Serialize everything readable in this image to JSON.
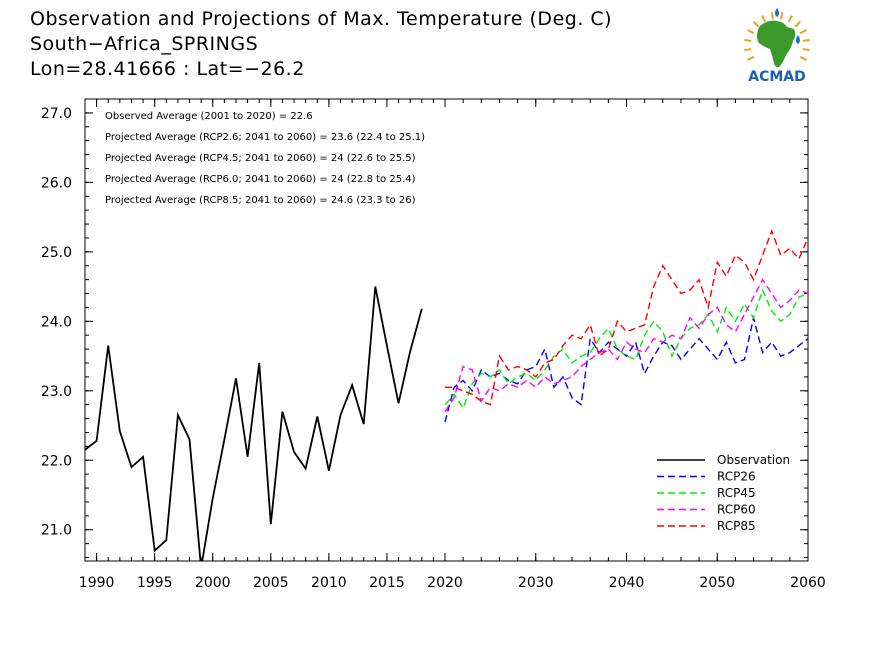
{
  "header": {
    "title": "Observation and Projections of Max. Temperature (Deg. C)",
    "location": "South−Africa_SPRINGS",
    "coords": "Lon=28.41666 : Lat=−26.2"
  },
  "logo": {
    "text": "ACMAD",
    "colors": {
      "africa": "#3a9a2a",
      "rays": "#f0a020",
      "drops": "#1a6fc8",
      "text": "#1a5fb0"
    }
  },
  "annotations": [
    "Observed Average (2001 to 2020) = 22.6",
    "Projected Average (RCP2.6; 2041 to 2060) = 23.6 (22.4 to 25.1)",
    "Projected Average (RCP4.5; 2041 to 2060) = 24 (22.6 to 25.5)",
    "Projected Average (RCP6.0; 2041 to 2060) = 24 (22.8 to 25.4)",
    "Projected Average (RCP8.5; 2041 to 2060) = 24.6 (23.3 to 26)"
  ],
  "chart_data": {
    "type": "line",
    "x_segments": [
      {
        "range": [
          1989,
          2020
        ],
        "ticks": [
          1990,
          1995,
          2000,
          2005,
          2010,
          2015,
          2020
        ]
      },
      {
        "range": [
          2020,
          2060
        ],
        "ticks": [
          2030,
          2040,
          2050,
          2060
        ]
      }
    ],
    "ylim": [
      20.55,
      27.2
    ],
    "yticks": [
      "21.0",
      "22.0",
      "23.0",
      "24.0",
      "25.0",
      "26.0",
      "27.0"
    ],
    "legend": {
      "position": "bottom-right",
      "entries": [
        "Observation",
        "RCP26",
        "RCP45",
        "RCP60",
        "RCP85"
      ]
    },
    "series": [
      {
        "name": "Observation",
        "color": "#000000",
        "dashed": false,
        "x": [
          1989,
          1990,
          1991,
          1992,
          1993,
          1994,
          1995,
          1996,
          1997,
          1998,
          1999,
          2000,
          2001,
          2002,
          2003,
          2004,
          2005,
          2006,
          2007,
          2008,
          2009,
          2010,
          2011,
          2012,
          2013,
          2014,
          2015,
          2016,
          2017,
          2018,
          2019
        ],
        "y": [
          22.15,
          22.28,
          23.65,
          22.42,
          21.9,
          22.05,
          20.7,
          20.85,
          22.65,
          22.3,
          20.45,
          21.45,
          22.3,
          23.18,
          22.05,
          23.4,
          21.08,
          22.7,
          22.12,
          21.88,
          22.63,
          21.85,
          22.65,
          23.08,
          22.52,
          24.5,
          23.65,
          22.82,
          23.57,
          24.18,
          null
        ]
      },
      {
        "name": "RCP26",
        "color": "#0000ff",
        "dashed": true,
        "x": [
          2020,
          2021,
          2022,
          2023,
          2024,
          2025,
          2026,
          2027,
          2028,
          2029,
          2030,
          2031,
          2032,
          2033,
          2034,
          2035,
          2036,
          2037,
          2038,
          2039,
          2040,
          2041,
          2042,
          2043,
          2044,
          2045,
          2046,
          2047,
          2048,
          2049,
          2050,
          2051,
          2052,
          2053,
          2054,
          2055,
          2056,
          2057,
          2058,
          2059,
          2060
        ],
        "y": [
          22.55,
          23.05,
          23.15,
          23.0,
          23.3,
          23.2,
          23.25,
          23.15,
          23.1,
          23.3,
          23.35,
          23.6,
          23.05,
          23.2,
          22.9,
          22.8,
          23.75,
          23.55,
          23.7,
          23.6,
          23.5,
          23.7,
          23.25,
          23.5,
          23.7,
          23.65,
          23.45,
          23.6,
          23.75,
          23.6,
          23.45,
          23.7,
          23.4,
          23.45,
          24.05,
          23.55,
          23.7,
          23.5,
          23.55,
          23.65,
          23.75
        ]
      },
      {
        "name": "RCP45",
        "color": "#00ee00",
        "dashed": true,
        "x": [
          2020,
          2021,
          2022,
          2023,
          2024,
          2025,
          2026,
          2027,
          2028,
          2029,
          2030,
          2031,
          2032,
          2033,
          2034,
          2035,
          2036,
          2037,
          2038,
          2039,
          2040,
          2041,
          2042,
          2043,
          2044,
          2045,
          2046,
          2047,
          2048,
          2049,
          2050,
          2051,
          2052,
          2053,
          2054,
          2055,
          2056,
          2057,
          2058,
          2059,
          2060
        ],
        "y": [
          22.8,
          22.95,
          22.75,
          23.1,
          23.25,
          23.2,
          23.3,
          23.1,
          23.2,
          23.25,
          23.15,
          23.3,
          23.5,
          23.6,
          23.4,
          23.5,
          23.55,
          23.75,
          23.9,
          23.6,
          23.5,
          23.45,
          23.8,
          24.0,
          23.85,
          23.5,
          23.75,
          23.9,
          23.95,
          24.1,
          23.85,
          24.2,
          24.0,
          24.25,
          24.05,
          24.45,
          24.15,
          24.0,
          24.1,
          24.35,
          24.4
        ]
      },
      {
        "name": "RCP60",
        "color": "#ff00ff",
        "dashed": true,
        "x": [
          2020,
          2021,
          2022,
          2023,
          2024,
          2025,
          2026,
          2027,
          2028,
          2029,
          2030,
          2031,
          2032,
          2033,
          2034,
          2035,
          2036,
          2037,
          2038,
          2039,
          2040,
          2041,
          2042,
          2043,
          2044,
          2045,
          2046,
          2047,
          2048,
          2049,
          2050,
          2051,
          2052,
          2053,
          2054,
          2055,
          2056,
          2057,
          2058,
          2059,
          2060
        ],
        "y": [
          22.7,
          22.9,
          23.35,
          23.3,
          22.85,
          23.05,
          23.0,
          23.1,
          23.05,
          23.15,
          23.05,
          23.2,
          23.1,
          23.15,
          23.2,
          23.35,
          23.45,
          23.55,
          23.6,
          23.45,
          23.7,
          23.6,
          23.55,
          23.75,
          23.7,
          23.8,
          23.75,
          24.05,
          23.9,
          24.1,
          24.2,
          23.95,
          23.85,
          24.1,
          24.35,
          24.6,
          24.4,
          24.2,
          24.3,
          24.45,
          24.4
        ]
      },
      {
        "name": "RCP85",
        "color": "#ff0000",
        "dashed": true,
        "x": [
          2020,
          2021,
          2022,
          2023,
          2024,
          2025,
          2026,
          2027,
          2028,
          2029,
          2030,
          2031,
          2032,
          2033,
          2034,
          2035,
          2036,
          2037,
          2038,
          2039,
          2040,
          2041,
          2042,
          2043,
          2044,
          2045,
          2046,
          2047,
          2048,
          2049,
          2050,
          2051,
          2052,
          2053,
          2054,
          2055,
          2056,
          2057,
          2058,
          2059,
          2060
        ],
        "y": [
          23.05,
          23.05,
          23.0,
          22.95,
          22.85,
          22.8,
          23.5,
          23.3,
          23.35,
          23.3,
          23.2,
          23.4,
          23.45,
          23.65,
          23.8,
          23.75,
          23.95,
          23.5,
          23.6,
          24.0,
          23.85,
          23.9,
          23.95,
          24.5,
          24.8,
          24.6,
          24.4,
          24.45,
          24.6,
          24.2,
          24.85,
          24.65,
          24.95,
          24.85,
          24.6,
          24.95,
          25.3,
          24.95,
          25.05,
          24.9,
          25.2
        ]
      }
    ]
  }
}
